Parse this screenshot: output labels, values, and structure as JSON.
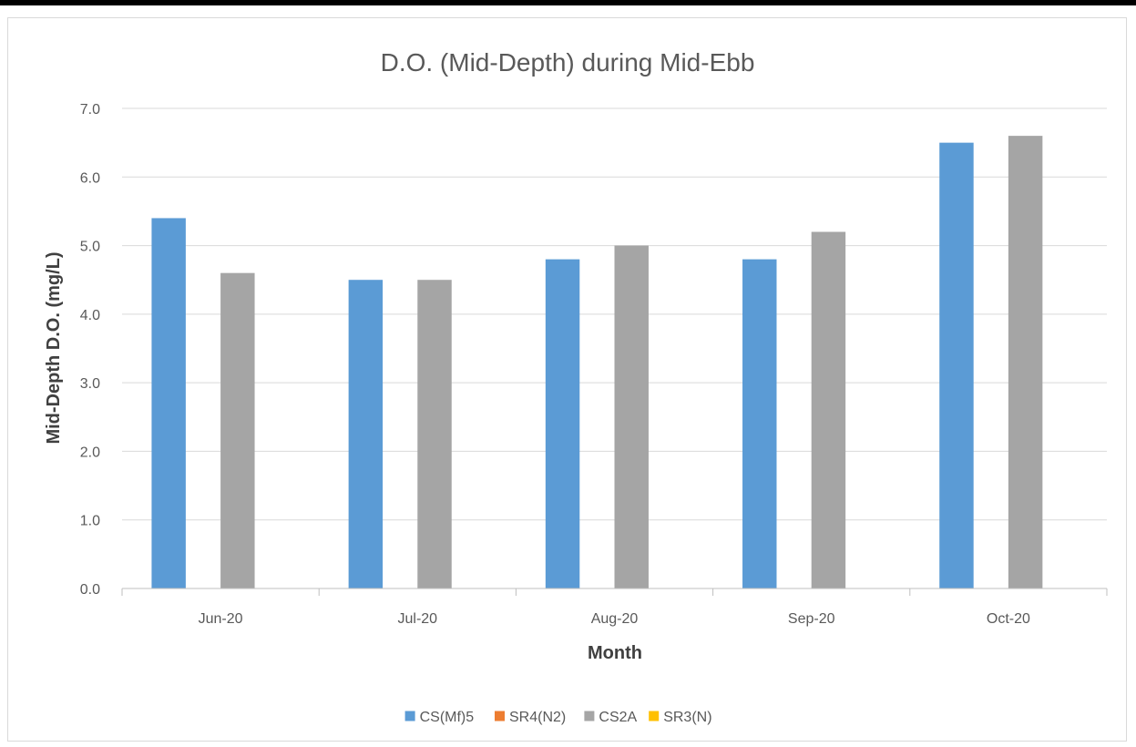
{
  "chart_data": {
    "type": "bar",
    "title": "D.O. (Mid-Depth) during Mid-Ebb",
    "xlabel": "Month",
    "ylabel": "Mid-Depth D.O. (mg/L)",
    "categories": [
      "Jun-20",
      "Jul-20",
      "Aug-20",
      "Sep-20",
      "Oct-20"
    ],
    "ylim": [
      0,
      7
    ],
    "ytick_step": 1,
    "ytick_labels": [
      "0.0",
      "1.0",
      "2.0",
      "3.0",
      "4.0",
      "5.0",
      "6.0",
      "7.0"
    ],
    "grid": true,
    "legend_position": "bottom",
    "series": [
      {
        "name": "CS(Mf)5",
        "color": "#5b9bd5",
        "values": [
          5.4,
          4.5,
          4.8,
          4.8,
          6.5
        ]
      },
      {
        "name": "SR4(N2)",
        "color": "#ed7d31",
        "values": [
          null,
          null,
          null,
          null,
          null
        ]
      },
      {
        "name": "CS2A",
        "color": "#a5a5a5",
        "values": [
          4.6,
          4.5,
          5.0,
          5.2,
          6.6
        ]
      },
      {
        "name": "SR3(N)",
        "color": "#ffc000",
        "values": [
          null,
          null,
          null,
          null,
          null
        ]
      }
    ]
  }
}
